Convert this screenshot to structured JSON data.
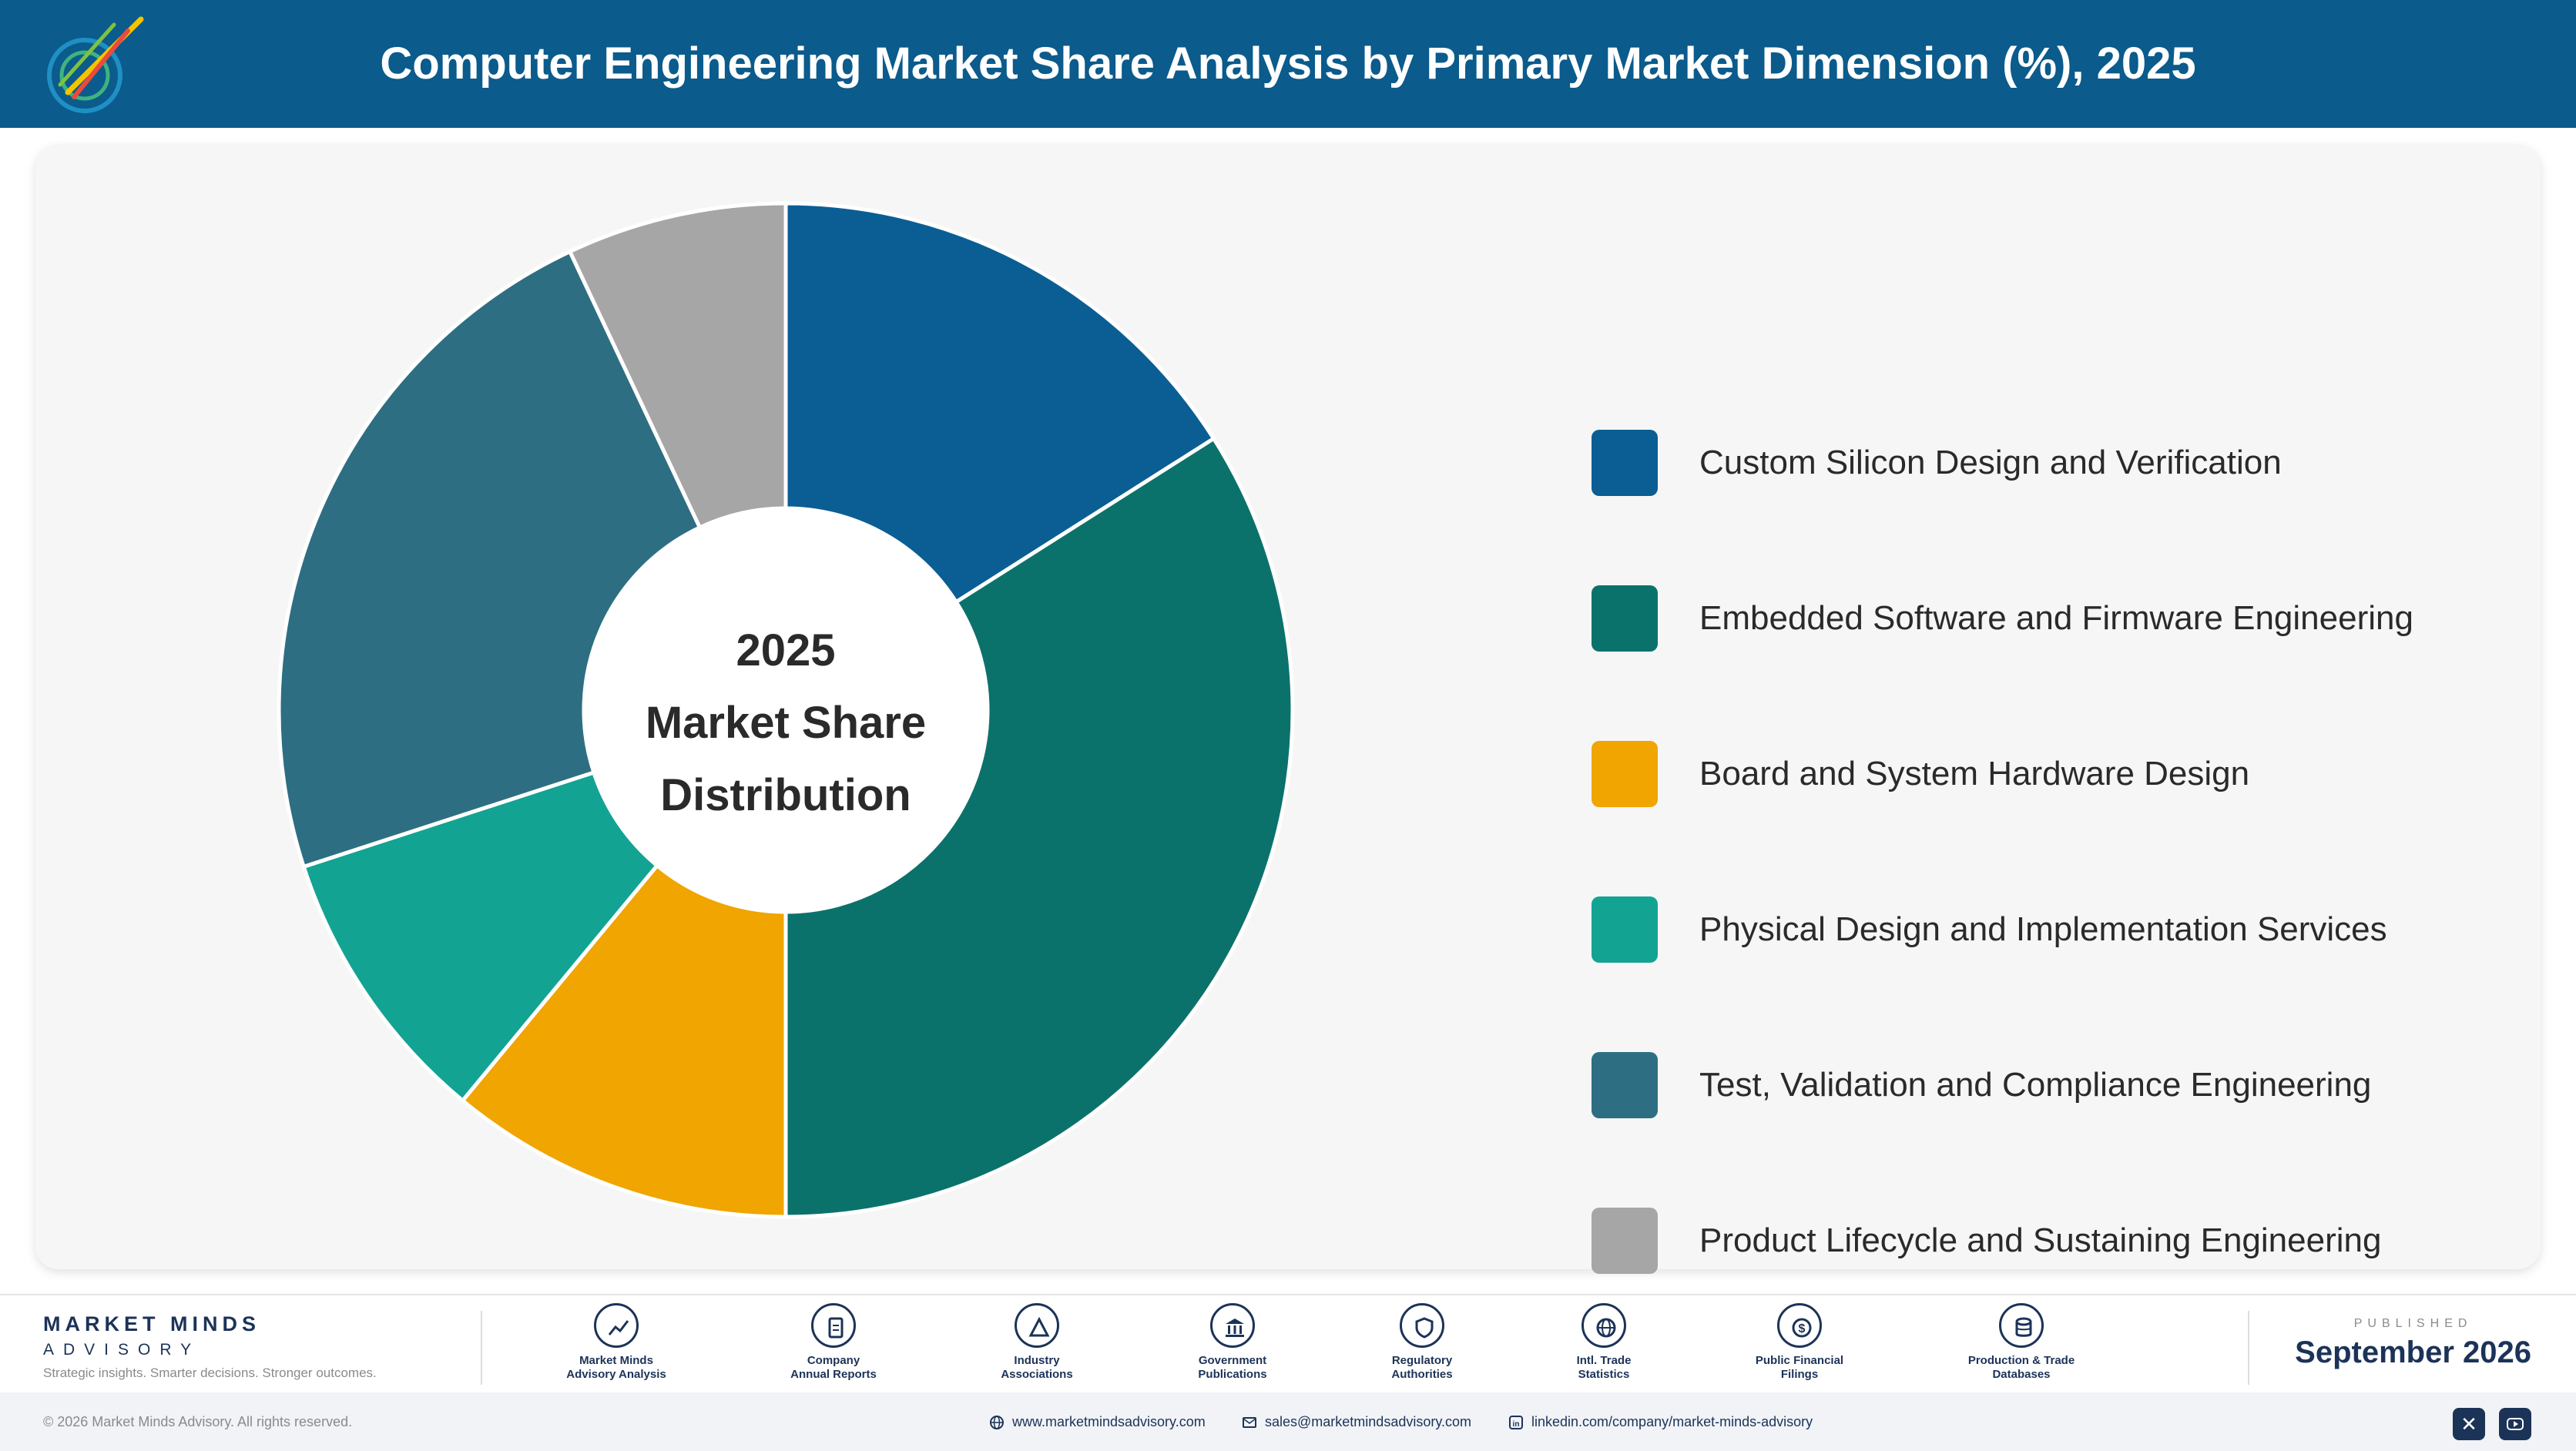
{
  "header": {
    "title": "Computer Engineering Market Share Analysis by Primary Market Dimension (%), 2025"
  },
  "chart_data": {
    "type": "pie",
    "donut": true,
    "center_text": [
      "2025",
      "Market Share",
      "Distribution"
    ],
    "legend_placement": "right",
    "slices": [
      {
        "label": "Custom Silicon Design and Verification",
        "value": 16,
        "color": "#0a5e94"
      },
      {
        "label": "Embedded Software and Firmware Engineering",
        "value": 34,
        "color": "#0b726b"
      },
      {
        "label": "Board and System Hardware Design",
        "value": 11,
        "color": "#f0a500"
      },
      {
        "label": "Physical Design and Implementation Services",
        "value": 9,
        "color": "#13a393"
      },
      {
        "label": "Test, Validation and Compliance Engineering",
        "value": 23,
        "color": "#2e6e82"
      },
      {
        "label": "Product Lifecycle and Sustaining Engineering",
        "value": 7,
        "color": "#a6a6a6"
      }
    ]
  },
  "footer": {
    "brand_name": "MARKET MINDS",
    "brand_sub": "ADVISORY",
    "brand_tagline": "Strategic insights. Smarter decisions. Stronger outcomes.",
    "sources": [
      {
        "label": "Market Minds\nAdvisory Analysis",
        "icon": "trend-icon"
      },
      {
        "label": "Company\nAnnual Reports",
        "icon": "document-icon"
      },
      {
        "label": "Industry\nAssociations",
        "icon": "network-icon"
      },
      {
        "label": "Government\nPublications",
        "icon": "government-icon"
      },
      {
        "label": "Regulatory\nAuthorities",
        "icon": "shield-icon"
      },
      {
        "label": "Intl. Trade\nStatistics",
        "icon": "globe-icon"
      },
      {
        "label": "Public Financial\nFilings",
        "icon": "dollar-icon"
      },
      {
        "label": "Production & Trade\nDatabases",
        "icon": "database-icon"
      }
    ],
    "published_label": "PUBLISHED",
    "published_date": "September 2026",
    "copyright": "© 2026 Market Minds Advisory. All rights reserved.",
    "website": "www.marketmindsadvisory.com",
    "email": "sales@marketmindsadvisory.com",
    "linkedin": "linkedin.com/company/market-minds-advisory",
    "social": [
      "x-icon",
      "youtube-icon"
    ]
  }
}
